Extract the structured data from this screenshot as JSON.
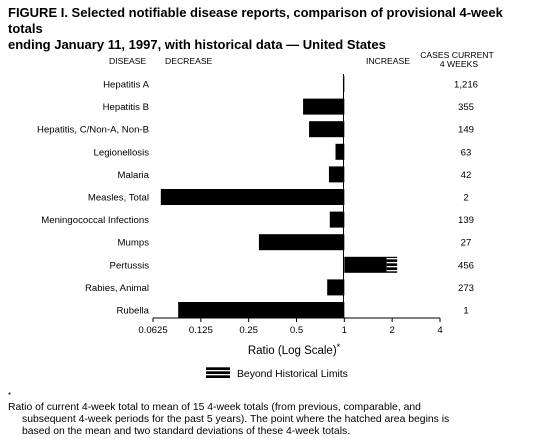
{
  "title": {
    "line1": "FIGURE I. Selected notifiable disease reports, comparison of provisional 4-week totals",
    "line2": "ending January 11, 1997, with historical data — United States"
  },
  "headers": {
    "disease": "DISEASE",
    "decrease": "DECREASE",
    "increase": "INCREASE",
    "cases_line1": "CASES CURRENT",
    "cases_line2": "4 WEEKS"
  },
  "xaxis_label": "Ratio (Log Scale)",
  "xaxis_label_mark": "*",
  "legend_label": "Beyond Historical Limits",
  "footnote": {
    "mark": "*",
    "line1": "Ratio of current 4-week total to mean of 15 4-week totals (from previous, comparable, and",
    "line2": "subsequent 4-week periods for the past 5 years). The point where the hatched area begins is",
    "line3": "based on the mean and two standard deviations of these 4-week totals."
  },
  "colors": {
    "bar": "#000000",
    "hatch": "#ffffff"
  },
  "chart_data": {
    "type": "bar",
    "orientation": "horizontal",
    "xscale": "log2",
    "xlim": [
      0.0625,
      4
    ],
    "xticks": [
      0.0625,
      0.125,
      0.25,
      0.5,
      1,
      2,
      4
    ],
    "xtick_labels": [
      "0.0625",
      "0.125",
      "0.25",
      "0.5",
      "1",
      "2",
      "4"
    ],
    "xlabel": "Ratio (Log Scale)*",
    "categories": [
      "Hepatitis A",
      "Hepatitis B",
      "Hepatitis, C/Non-A, Non-B",
      "Legionellosis",
      "Malaria",
      "Measles, Total",
      "Meningococcal Infections",
      "Mumps",
      "Pertussis",
      "Rabies, Animal",
      "Rubella"
    ],
    "ratios": [
      0.98,
      0.55,
      0.6,
      0.88,
      0.8,
      0.07,
      0.81,
      0.29,
      2.15,
      0.78,
      0.09
    ],
    "historical_limit": [
      null,
      null,
      null,
      null,
      null,
      null,
      null,
      null,
      1.85,
      null,
      null
    ],
    "cases_current_4_weeks": [
      "1,216",
      "355",
      "149",
      "63",
      "42",
      "2",
      "139",
      "27",
      "456",
      "273",
      "1"
    ]
  }
}
